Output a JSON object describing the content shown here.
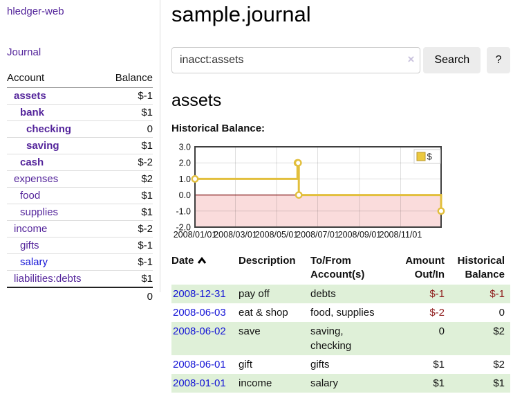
{
  "app": {
    "brand": "hledger-web",
    "nav_journal": "Journal"
  },
  "sidebar": {
    "headers": {
      "account": "Account",
      "balance": "Balance"
    },
    "accounts": [
      {
        "name": "assets",
        "balance": "$-1"
      },
      {
        "name": "bank",
        "balance": "$1"
      },
      {
        "name": "checking",
        "balance": "0"
      },
      {
        "name": "saving",
        "balance": "$1"
      },
      {
        "name": "cash",
        "balance": "$-2"
      },
      {
        "name": "expenses",
        "balance": "$2"
      },
      {
        "name": "food",
        "balance": "$1"
      },
      {
        "name": "supplies",
        "balance": "$1"
      },
      {
        "name": "income",
        "balance": "$-2"
      },
      {
        "name": "gifts",
        "balance": "$-1"
      },
      {
        "name": "salary",
        "balance": "$-1"
      },
      {
        "name": "liabilities:debts",
        "balance": "$1"
      }
    ],
    "total": "0"
  },
  "header": {
    "title": "sample.journal"
  },
  "search": {
    "query": "inacct:assets",
    "clear": "×",
    "button": "Search",
    "help": "?"
  },
  "account_page": {
    "title": "assets",
    "chart_label": "Historical Balance:"
  },
  "chart_data": {
    "type": "line",
    "title": "Historical Balance:",
    "step": true,
    "series": [
      {
        "name": "$",
        "points": [
          {
            "date": "2008-01-01",
            "day": 0,
            "value": 1
          },
          {
            "date": "2008-06-01",
            "day": 152,
            "value": 2
          },
          {
            "date": "2008-06-02",
            "day": 153,
            "value": 2
          },
          {
            "date": "2008-06-03",
            "day": 154,
            "value": 0
          },
          {
            "date": "2008-12-31",
            "day": 365,
            "value": -1
          }
        ]
      }
    ],
    "xticks": [
      {
        "label": "2008/01/01",
        "day": 0
      },
      {
        "label": "2008/03/01",
        "day": 60
      },
      {
        "label": "2008/05/01",
        "day": 121
      },
      {
        "label": "2008/07/01",
        "day": 182
      },
      {
        "label": "2008/09/01",
        "day": 244
      },
      {
        "label": "2008/11/01",
        "day": 305
      }
    ],
    "yticks": [
      "3.0",
      "2.0",
      "1.0",
      "0.0",
      "-1.0",
      "-2.0"
    ],
    "ylim": [
      -2,
      3
    ],
    "xlim_days": [
      0,
      365
    ],
    "grid": true,
    "legend_position": "top-right",
    "legend": {
      "label": "$",
      "swatch": "#ecc93e"
    },
    "line_color": "#e2bf3c",
    "marker_fill": "#ffffff",
    "negative_fill": "#fadcdc",
    "zero_line_color": "#7e1010",
    "border_color": "#3f3f3f"
  },
  "table": {
    "columns": [
      "Date",
      "Description",
      "To/From Account(s)",
      "Amount Out/In",
      "Historical Balance"
    ],
    "rows": [
      {
        "date": "2008-12-31",
        "description": "pay off",
        "accounts": "debts",
        "amount": "$-1",
        "balance": "$-1"
      },
      {
        "date": "2008-06-03",
        "description": "eat & shop",
        "accounts": "food, supplies",
        "amount": "$-2",
        "balance": "0"
      },
      {
        "date": "2008-06-02",
        "description": "save",
        "accounts": "saving, checking",
        "amount": "0",
        "balance": "$2"
      },
      {
        "date": "2008-06-01",
        "description": "gift",
        "accounts": "gifts",
        "amount": "$1",
        "balance": "$2"
      },
      {
        "date": "2008-01-01",
        "description": "income",
        "accounts": "salary",
        "amount": "$1",
        "balance": "$1"
      }
    ]
  }
}
